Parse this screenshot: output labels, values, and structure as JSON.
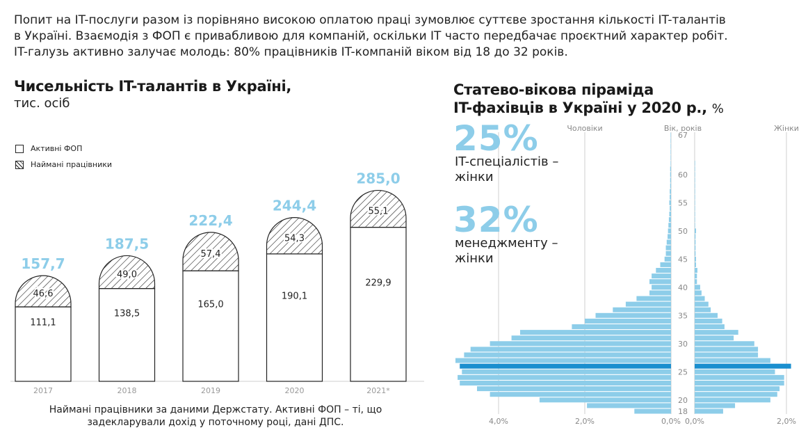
{
  "intro": {
    "line1": "Попит на IT-послуги разом із порівняно високою оплатою праці зумовлює суттєве зростання кількості IT-талантів",
    "line2": "в Україні. Взаємодія з ФОП є привабливою для компаній, оскільки IT часто передбачає проєктний характер робіт.",
    "line3": "IT-галузь активно залучає молодь: 80% працівників IT-компаній віком від 18 до 32 років."
  },
  "bar_title": "Чисельність IT-талантів в Україні,",
  "bar_subtitle": "тис. осіб",
  "pyr_title_line1": "Статево-вікова піраміда",
  "pyr_title_line2": "IT-фахівців в Україні у 2020 р.,",
  "pyr_title_unit": "%",
  "note_line1": "Наймані працівники за даними Держстату. Активні ФОП – ті, що",
  "note_line2": "задекларували дохід у поточному році, дані ДПС.",
  "stat1": {
    "value": "25%",
    "caption_line1": "IT-спеціалістів –",
    "caption_line2": "жінки"
  },
  "stat2": {
    "value": "32%",
    "caption_line1": "менеджменту –",
    "caption_line2": "жінки"
  },
  "colors": {
    "accent": "#8dcde9",
    "highlight": "#1a8fcf",
    "ink": "#1a1a1a"
  },
  "chart_data": [
    {
      "type": "bar",
      "title": "Чисельність IT-талантів в Україні,",
      "subtitle": "тис. осіб",
      "categories": [
        "2017",
        "2018",
        "2019",
        "2020",
        "2021*"
      ],
      "series": [
        {
          "name": "Активні ФОП",
          "values": [
            111.1,
            138.5,
            165.0,
            190.1,
            229.9
          ],
          "labels": [
            "111,1",
            "138,5",
            "165,0",
            "190,1",
            "229,9"
          ]
        },
        {
          "name": "Наймані працівники",
          "values": [
            46.6,
            49.0,
            57.4,
            54.3,
            55.1
          ],
          "labels": [
            "46,6",
            "49,0",
            "57,4",
            "54,3",
            "55,1"
          ]
        }
      ],
      "totals": [
        157.7,
        187.5,
        222.4,
        244.4,
        285.0
      ],
      "total_labels": [
        "157,7",
        "187,5",
        "222,4",
        "244,4",
        "285,0"
      ],
      "stacked": true,
      "legend": "top-left"
    },
    {
      "type": "bar",
      "title": "Статево-вікова піраміда IT-фахівців в Україні у 2020 р.,",
      "unit": "%",
      "orientation": "horizontal-pyramid",
      "left_label": "Чоловіки",
      "middle_label": "Вік, років",
      "right_label": "Жінки",
      "age_ticks": [
        18,
        20,
        25,
        30,
        35,
        40,
        45,
        50,
        55,
        60,
        67
      ],
      "x_ticks_left": [
        "4,0%",
        "2,0%",
        "0,0%"
      ],
      "x_ticks_right": [
        "0,0%",
        "2,0%"
      ],
      "highlight_age": 26,
      "ages": [
        18,
        19,
        20,
        21,
        22,
        23,
        24,
        25,
        26,
        27,
        28,
        29,
        30,
        31,
        32,
        33,
        34,
        35,
        36,
        37,
        38,
        39,
        40,
        41,
        42,
        43,
        44,
        45,
        46,
        47,
        48,
        49,
        50,
        51,
        52,
        53,
        54,
        55,
        56,
        57,
        58,
        59,
        60,
        61,
        62,
        63,
        64,
        65,
        66,
        67
      ],
      "male": [
        0.85,
        1.95,
        3.05,
        4.2,
        4.5,
        4.9,
        4.95,
        4.85,
        4.9,
        5.0,
        4.8,
        4.65,
        4.2,
        3.7,
        3.5,
        2.3,
        2.0,
        1.75,
        1.35,
        1.05,
        0.8,
        0.5,
        0.45,
        0.5,
        0.45,
        0.35,
        0.25,
        0.15,
        0.12,
        0.12,
        0.1,
        0.08,
        0.07,
        0.06,
        0.05,
        0.04,
        0.03,
        0.04,
        0.03,
        0.03,
        0.02,
        0.02,
        0.02,
        0.02,
        0.01,
        0.01,
        0.01,
        0.01,
        0.01,
        0.01
      ],
      "female": [
        0.62,
        0.88,
        1.65,
        1.8,
        1.85,
        1.95,
        1.95,
        1.75,
        2.1,
        1.65,
        1.38,
        1.38,
        1.3,
        0.85,
        0.95,
        0.65,
        0.6,
        0.5,
        0.35,
        0.3,
        0.22,
        0.15,
        0.12,
        0.05,
        0.05,
        0.06,
        0.03,
        0.03,
        0.02,
        0.02,
        0.02,
        0.02,
        0.03,
        0.01,
        0.01,
        0.01,
        0.01,
        0.01,
        0.01,
        0.01,
        0.01,
        0.01,
        0.01,
        0.01,
        0.01,
        0.0,
        0.0,
        0.0,
        0.0,
        0.0
      ]
    }
  ]
}
